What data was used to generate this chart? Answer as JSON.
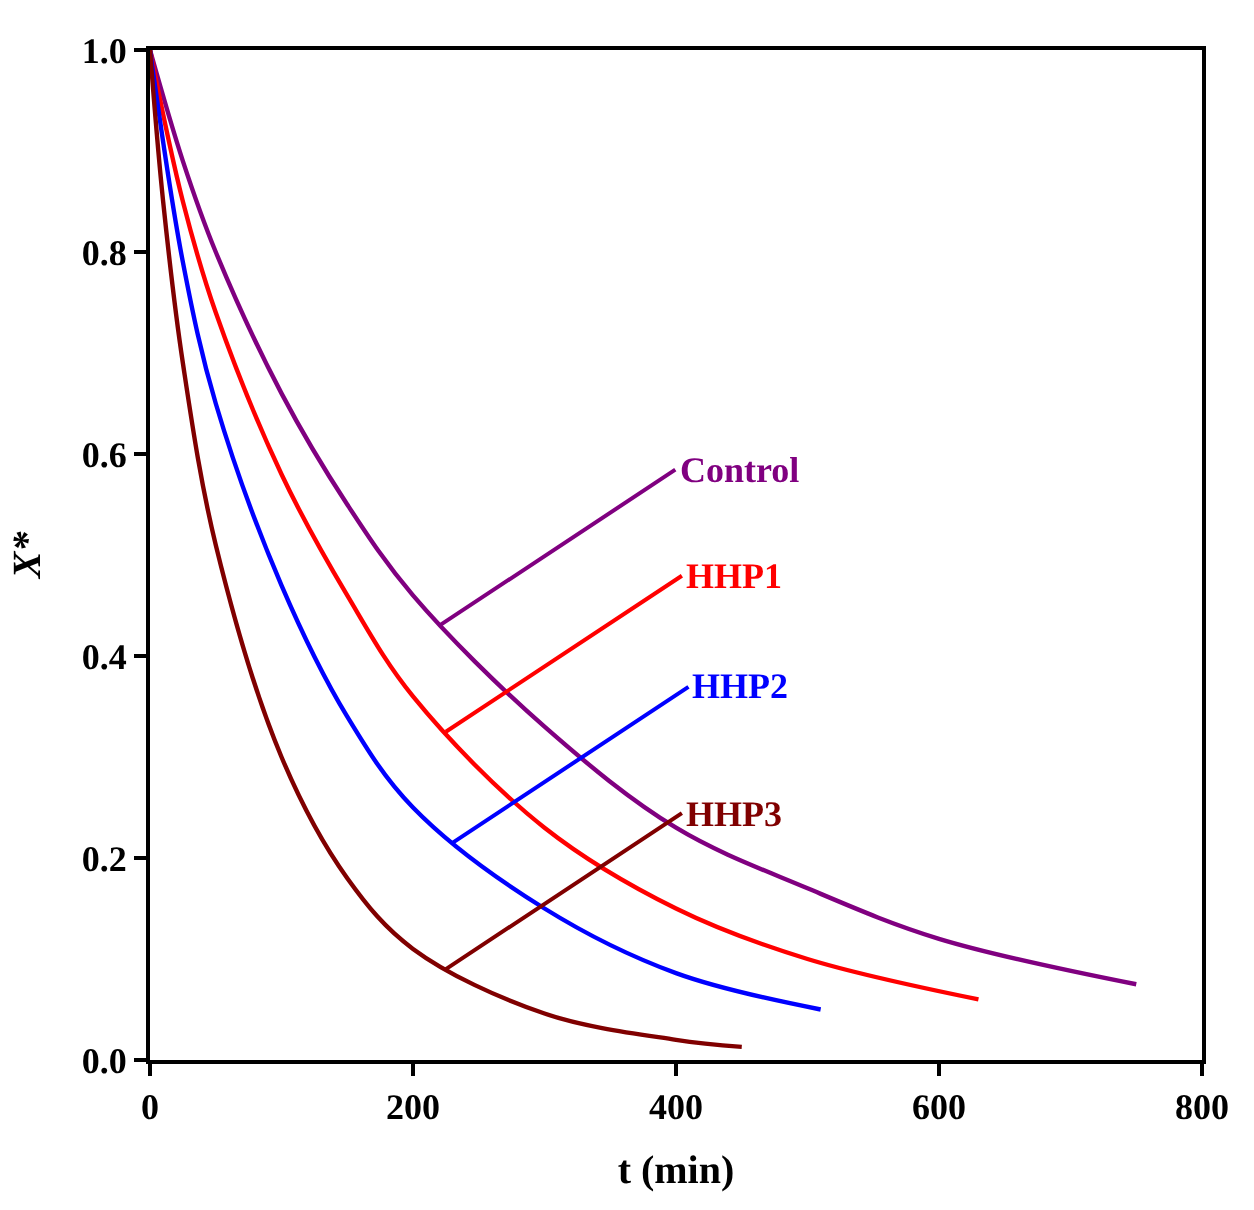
{
  "chart_data": {
    "type": "line",
    "xlabel": "t (min)",
    "ylabel": "X*",
    "xlim": [
      0,
      800
    ],
    "ylim": [
      0,
      1
    ],
    "xticks": [
      0,
      200,
      400,
      600,
      800
    ],
    "yticks": [
      {
        "value": 0,
        "label": "0.0"
      },
      {
        "value": 0.2,
        "label": "0.2"
      },
      {
        "value": 0.4,
        "label": "0.4"
      },
      {
        "value": 0.6,
        "label": "0.6"
      },
      {
        "value": 0.8,
        "label": "0.8"
      },
      {
        "value": 1,
        "label": "1.0"
      }
    ],
    "marker": "none",
    "line_style": "solid",
    "series": [
      {
        "color": "#800080",
        "x": [
          0,
          25,
          50,
          100,
          150,
          200,
          300,
          400,
          500,
          600,
          750
        ],
        "values": [
          1.0,
          0.89,
          0.8,
          0.66,
          0.55,
          0.46,
          0.33,
          0.23,
          0.17,
          0.12,
          0.075
        ]
      },
      {
        "color": "#ff0000",
        "x": [
          0,
          25,
          50,
          100,
          150,
          200,
          300,
          400,
          500,
          630
        ],
        "values": [
          1.0,
          0.85,
          0.74,
          0.58,
          0.46,
          0.36,
          0.23,
          0.15,
          0.1,
          0.06
        ]
      },
      {
        "color": "#0000ff",
        "x": [
          0,
          25,
          50,
          100,
          150,
          200,
          300,
          400,
          510
        ],
        "values": [
          1.0,
          0.79,
          0.65,
          0.47,
          0.34,
          0.25,
          0.15,
          0.086,
          0.05
        ]
      },
      {
        "color": "#800000",
        "x": [
          0,
          10,
          25,
          50,
          100,
          150,
          200,
          300,
          400,
          450
        ],
        "values": [
          1.0,
          0.85,
          0.69,
          0.51,
          0.3,
          0.18,
          0.11,
          0.046,
          0.02,
          0.013
        ]
      }
    ],
    "annotations": [
      {
        "text": "Control",
        "x": 220,
        "y": 0.43
      },
      {
        "text": "HHP1",
        "x": 225,
        "y": 0.325
      },
      {
        "text": "HHP2",
        "x": 230,
        "y": 0.215
      },
      {
        "text": "HHP3",
        "x": 225,
        "y": 0.09
      }
    ]
  }
}
